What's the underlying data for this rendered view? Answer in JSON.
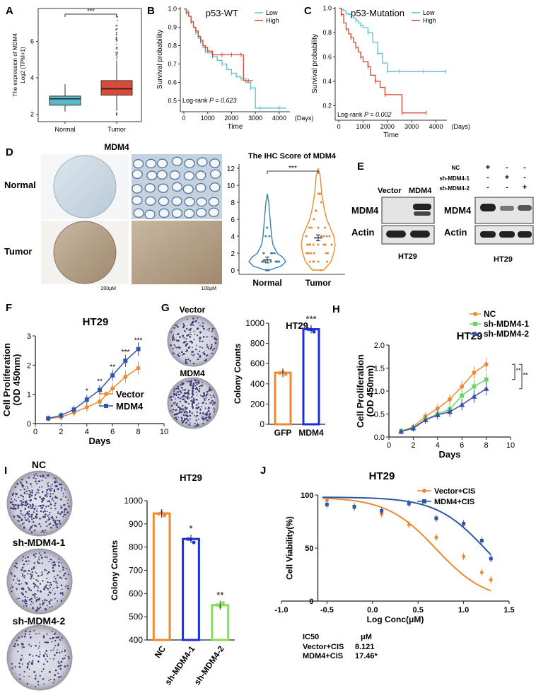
{
  "colors": {
    "normal": "#5bb8c8",
    "tumor": "#d94a38",
    "km_low": "#5bc0cc",
    "km_high": "#d9442e",
    "orange": "#ec8a33",
    "blue": "#2f57a8",
    "green": "#6bd36b",
    "purple": "#3c4fa8",
    "bright_blue": "#1a2ee0",
    "lime": "#7fe05a",
    "ihc_blue": "#3a7fb8",
    "ihc_orange": "#ec8a33"
  },
  "panels": {
    "A": "A",
    "B": "B",
    "C": "C",
    "D": "D",
    "E": "E",
    "F": "F",
    "G": "G",
    "H": "H",
    "I": "I",
    "J": "J"
  },
  "chart_data": [
    {
      "panel": "A",
      "type": "box",
      "ylabel": "The expression of MDM4",
      "ylabel2": "Log2 (TPM+1)",
      "categories": [
        "Normal",
        "Tumor"
      ],
      "yticks": [
        2,
        4,
        6
      ],
      "ylim": [
        1.6,
        7.8
      ],
      "boxes": [
        {
          "category": "Normal",
          "whisker_low": 2.15,
          "q1": 2.5,
          "median": 2.85,
          "q3": 3.0,
          "whisker_high": 3.65
        },
        {
          "category": "Tumor",
          "whisker_low": 2.2,
          "q1": 3.05,
          "median": 3.4,
          "q3": 3.85,
          "whisker_high": 4.95,
          "outlier_max": 7.5
        }
      ],
      "significance": "***"
    },
    {
      "panel": "B",
      "type": "line",
      "title": "p53-WT",
      "xlabel": "Time",
      "ylabel": "Survival probability",
      "xticks": [
        0,
        1000,
        2000,
        3000,
        4000
      ],
      "xtick_suffix": "(Days)",
      "yticks": [
        0.5,
        0.6,
        0.7,
        0.8,
        0.9,
        1.0
      ],
      "xlim": [
        -150,
        4450
      ],
      "ylim": [
        0.44,
        1.01
      ],
      "legend": [
        "Low",
        "High"
      ],
      "annotation": "Log-rank",
      "annotation_p": "P = 0.623",
      "series": [
        {
          "name": "Low",
          "x": [
            0,
            100,
            200,
            300,
            400,
            500,
            600,
            700,
            800,
            900,
            1000,
            1200,
            1400,
            1600,
            1800,
            2000,
            2200,
            2400,
            2600,
            2800,
            3000,
            3200,
            3500,
            4000,
            4300
          ],
          "y": [
            1.0,
            0.99,
            0.96,
            0.93,
            0.9,
            0.87,
            0.84,
            0.82,
            0.79,
            0.77,
            0.76,
            0.74,
            0.72,
            0.7,
            0.67,
            0.65,
            0.63,
            0.62,
            0.6,
            0.57,
            0.46,
            0.46,
            0.46,
            0.46,
            0.46
          ]
        },
        {
          "name": "High",
          "x": [
            0,
            100,
            200,
            300,
            400,
            500,
            600,
            700,
            800,
            900,
            1000,
            1200,
            1400,
            1600,
            1800,
            2000,
            2200,
            2400,
            2500,
            2700,
            2900
          ],
          "y": [
            1.0,
            0.98,
            0.96,
            0.93,
            0.9,
            0.88,
            0.85,
            0.83,
            0.8,
            0.79,
            0.77,
            0.75,
            0.75,
            0.75,
            0.75,
            0.75,
            0.75,
            0.75,
            0.61,
            0.61,
            0.61
          ]
        }
      ]
    },
    {
      "panel": "C",
      "type": "line",
      "title": "p53-Mutation",
      "xlabel": "Time",
      "ylabel": "Survival probability",
      "xticks": [
        0,
        1000,
        2000,
        3000,
        4000
      ],
      "xtick_suffix": "(Days)",
      "yticks": [
        0.2,
        0.4,
        0.6,
        0.8,
        1.0
      ],
      "xlim": [
        -150,
        4450
      ],
      "ylim": [
        0.08,
        1.01
      ],
      "legend": [
        "Low",
        "High"
      ],
      "annotation": "Log-rank",
      "annotation_p": "P = 0.002",
      "series": [
        {
          "name": "Low",
          "x": [
            0,
            100,
            200,
            300,
            400,
            500,
            600,
            700,
            800,
            900,
            1000,
            1200,
            1400,
            1600,
            1800,
            2000,
            2200,
            2500,
            3000,
            3500,
            4000,
            4400
          ],
          "y": [
            1.0,
            0.99,
            0.98,
            0.96,
            0.95,
            0.94,
            0.92,
            0.9,
            0.88,
            0.86,
            0.84,
            0.8,
            0.72,
            0.63,
            0.55,
            0.48,
            0.48,
            0.48,
            0.48,
            0.48,
            0.48,
            0.48
          ]
        },
        {
          "name": "High",
          "x": [
            0,
            100,
            200,
            300,
            400,
            500,
            600,
            700,
            800,
            900,
            1000,
            1200,
            1300,
            1500,
            1700,
            1900,
            2100,
            2600,
            3000,
            3600
          ],
          "y": [
            1.0,
            0.95,
            0.88,
            0.83,
            0.79,
            0.76,
            0.72,
            0.68,
            0.64,
            0.6,
            0.56,
            0.52,
            0.45,
            0.4,
            0.35,
            0.29,
            0.29,
            0.14,
            0.14,
            0.14
          ]
        }
      ]
    },
    {
      "panel": "D",
      "type": "violin",
      "title": "The IHC Score of MDM4",
      "categories": [
        "Normal",
        "Tumor"
      ],
      "yticks": [
        0,
        2,
        4,
        6,
        8,
        10,
        12
      ],
      "ylim": [
        -0.5,
        12.5
      ],
      "means": [
        1.2,
        3.8
      ],
      "sems": [
        0.35,
        0.35
      ],
      "significance": "***"
    },
    {
      "panel": "F",
      "type": "line",
      "title": "HT29",
      "xlabel": "Days",
      "ylabel": "Cell Proliferation",
      "ylabel2": "(OD 450nm)",
      "xticks": [
        0,
        2,
        4,
        6,
        8,
        10
      ],
      "yticks": [
        0,
        1,
        2,
        3
      ],
      "xlim": [
        0,
        10
      ],
      "ylim": [
        0,
        3
      ],
      "x": [
        1,
        2,
        3,
        4,
        5,
        6,
        7,
        8
      ],
      "series": [
        {
          "name": "Vector",
          "values": [
            0.17,
            0.22,
            0.38,
            0.56,
            0.75,
            1.2,
            1.6,
            1.9
          ]
        },
        {
          "name": "MDM4",
          "values": [
            0.18,
            0.28,
            0.48,
            0.82,
            1.15,
            1.65,
            2.15,
            2.55
          ]
        }
      ],
      "stars": [
        "*",
        "**",
        "**",
        "***",
        "***"
      ],
      "star_x": [
        4,
        5,
        6,
        7,
        8
      ]
    },
    {
      "panel": "G",
      "type": "bar",
      "title": "HT29",
      "ylabel": "Colony  Counts",
      "categories": [
        "GFP",
        "MDM4"
      ],
      "values": [
        510,
        940
      ],
      "yticks": [
        0,
        200,
        400,
        600,
        800,
        1000
      ],
      "ylim": [
        0,
        1000
      ],
      "significance": "***",
      "image_labels": [
        "Vector",
        "MDM4"
      ]
    },
    {
      "panel": "H",
      "type": "line",
      "title": "HT29",
      "xlabel": "Days",
      "ylabel": "Cell Proliferation",
      "ylabel2": "(OD 450nm)",
      "xticks": [
        0,
        2,
        4,
        6,
        8,
        10
      ],
      "yticks": [
        0.0,
        0.5,
        1.0,
        1.5,
        2.0
      ],
      "xlim": [
        0,
        10
      ],
      "ylim": [
        0,
        2.0
      ],
      "x": [
        1,
        2,
        3,
        4,
        5,
        6,
        7,
        8
      ],
      "series": [
        {
          "name": "NC",
          "values": [
            0.13,
            0.22,
            0.45,
            0.62,
            0.82,
            1.1,
            1.4,
            1.58
          ]
        },
        {
          "name": "sh-MDM4-1",
          "values": [
            0.13,
            0.2,
            0.38,
            0.5,
            0.6,
            0.9,
            1.1,
            1.25
          ]
        },
        {
          "name": "sh-MDM4-2",
          "values": [
            0.12,
            0.19,
            0.37,
            0.48,
            0.55,
            0.7,
            0.88,
            1.05
          ]
        }
      ],
      "significance": [
        "**",
        "**"
      ]
    },
    {
      "panel": "I",
      "type": "bar",
      "title": "HT29",
      "ylabel": "Colony Counts",
      "categories": [
        "NC",
        "sh-MDM4-1",
        "sh-MDM4-2"
      ],
      "values": [
        945,
        835,
        550
      ],
      "yticks": [
        400,
        500,
        600,
        700,
        800,
        900,
        1000
      ],
      "ylim": [
        400,
        1000
      ],
      "stars": [
        "",
        "*",
        "**"
      ],
      "image_labels": [
        "NC",
        "sh-MDM4-1",
        "sh-MDM4-2"
      ]
    },
    {
      "panel": "J",
      "type": "scatter",
      "title": "HT29",
      "xlabel": "Log Conc(μM)",
      "ylabel": "Cell Viability(%)",
      "xticks": [
        -1.0,
        -0.5,
        0.0,
        0.5,
        1.0,
        1.5
      ],
      "yticks": [
        0,
        50,
        100
      ],
      "xlim": [
        -1.0,
        1.5
      ],
      "ylim": [
        0,
        100
      ],
      "series": [
        {
          "name": "Vector+CIS",
          "x": [
            -0.5,
            -0.2,
            0.1,
            0.4,
            0.7,
            1.0,
            1.2,
            1.3
          ],
          "y": [
            95,
            88,
            82,
            72,
            60,
            42,
            27,
            20
          ]
        },
        {
          "name": "MDM4+CIS",
          "x": [
            -0.5,
            -0.2,
            0.1,
            0.4,
            0.7,
            1.0,
            1.2,
            1.3
          ],
          "y": [
            91,
            89,
            85,
            92,
            78,
            73,
            57,
            40
          ]
        }
      ],
      "ic50_header": "IC50",
      "ic50_unit": "μM",
      "ic50": [
        {
          "name": "Vector+CIS",
          "value": "8.121"
        },
        {
          "name": "MDM4+CIS",
          "value": "17.46*"
        }
      ]
    }
  ],
  "D_labels": {
    "title": "MDM4",
    "normal": "Normal",
    "tumor": "Tumor",
    "scale1": "200μM",
    "scale2": "100μM"
  },
  "E_labels": {
    "vector": "Vector",
    "mdm4": "MDM4",
    "protein": "MDM4",
    "actin": "Actin",
    "cell": "HT29",
    "nc": "NC",
    "sh1": "sh-MDM4-1",
    "sh2": "sh-MDM4-2",
    "plus": "+",
    "minus": "-"
  }
}
